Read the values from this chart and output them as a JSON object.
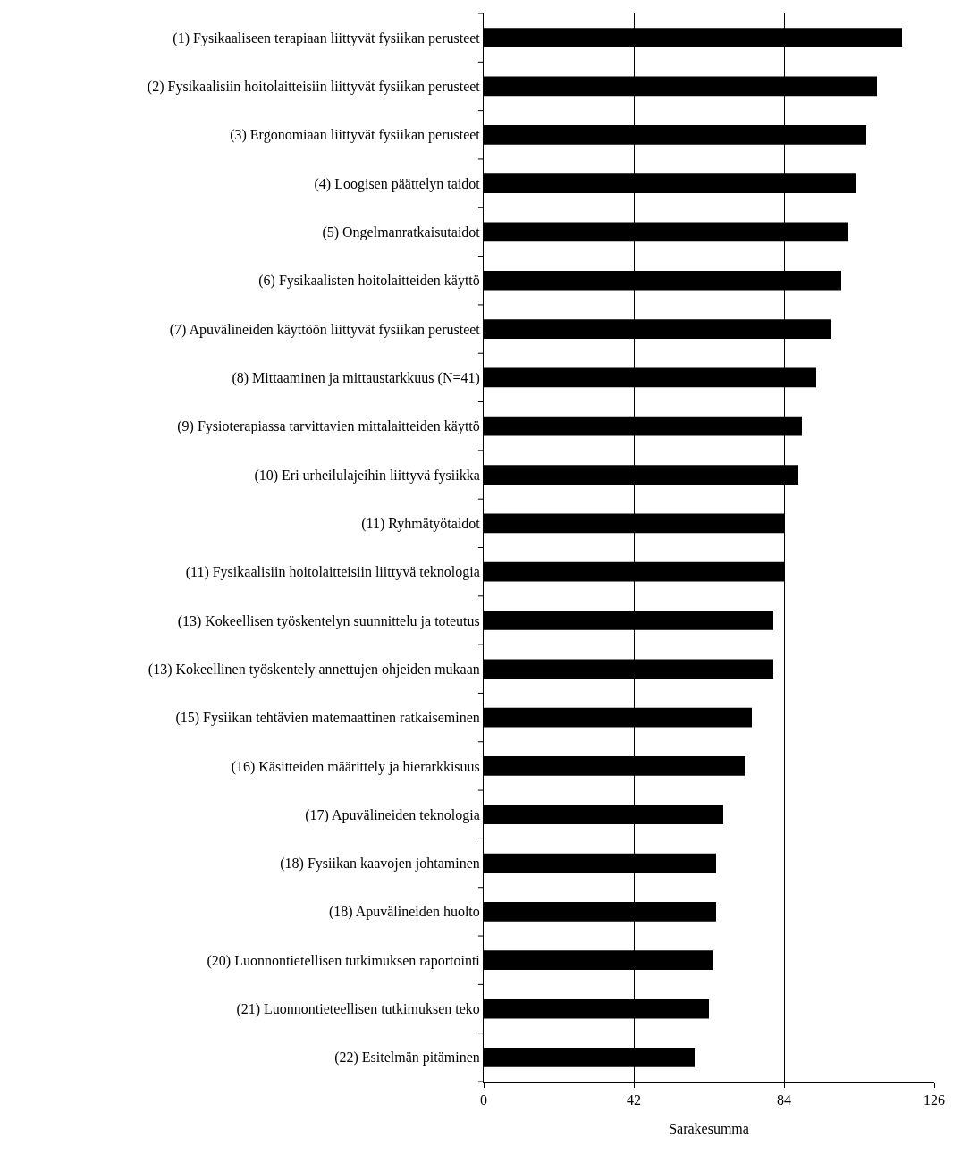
{
  "chart_data": {
    "type": "bar",
    "orientation": "horizontal",
    "xlabel": "Sarakesumma",
    "categories": [
      "(1) Fysikaaliseen terapiaan liittyvät fysiikan perusteet",
      "(2) Fysikaalisiin hoitolaitteisiin liittyvät fysiikan perusteet",
      "(3) Ergonomiaan liittyvät fysiikan perusteet",
      "(4) Loogisen päättelyn taidot",
      "(5) Ongelmanratkaisutaidot",
      "(6) Fysikaalisten hoitolaitteiden käyttö",
      "(7) Apuvälineiden käyttöön liittyvät fysiikan perusteet",
      "(8) Mittaaminen ja mittaustarkkuus (N=41)",
      "(9) Fysioterapiassa tarvittavien mittalaitteiden käyttö",
      "(10) Eri urheilulajeihin liittyvä fysiikka",
      "(11) Ryhmätyötaidot",
      "(11) Fysikaalisiin hoitolaitteisiin liittyvä teknologia",
      "(13) Kokeellisen työskentelyn suunnittelu ja toteutus",
      "(13) Kokeellinen työskentely annettujen ohjeiden mukaan",
      "(15) Fysiikan tehtävien matemaattinen ratkaiseminen",
      "(16) Käsitteiden määrittely ja hierarkkisuus",
      "(17) Apuvälineiden teknologia",
      "(18) Fysiikan kaavojen johtaminen",
      "(18) Apuvälineiden huolto",
      "(20) Luonnontietellisen tutkimuksen raportointi",
      "(21) Luonnontieteellisen tutkimuksen teko",
      "(22) Esitelmän pitäminen"
    ],
    "values": [
      117,
      110,
      107,
      104,
      102,
      100,
      97,
      93,
      89,
      88,
      84,
      84,
      81,
      81,
      75,
      73,
      67,
      65,
      65,
      64,
      63,
      59
    ],
    "color": "#000000",
    "xlim": [
      0,
      126
    ],
    "xticks": [
      0,
      42,
      84,
      126
    ],
    "grid": "x"
  }
}
